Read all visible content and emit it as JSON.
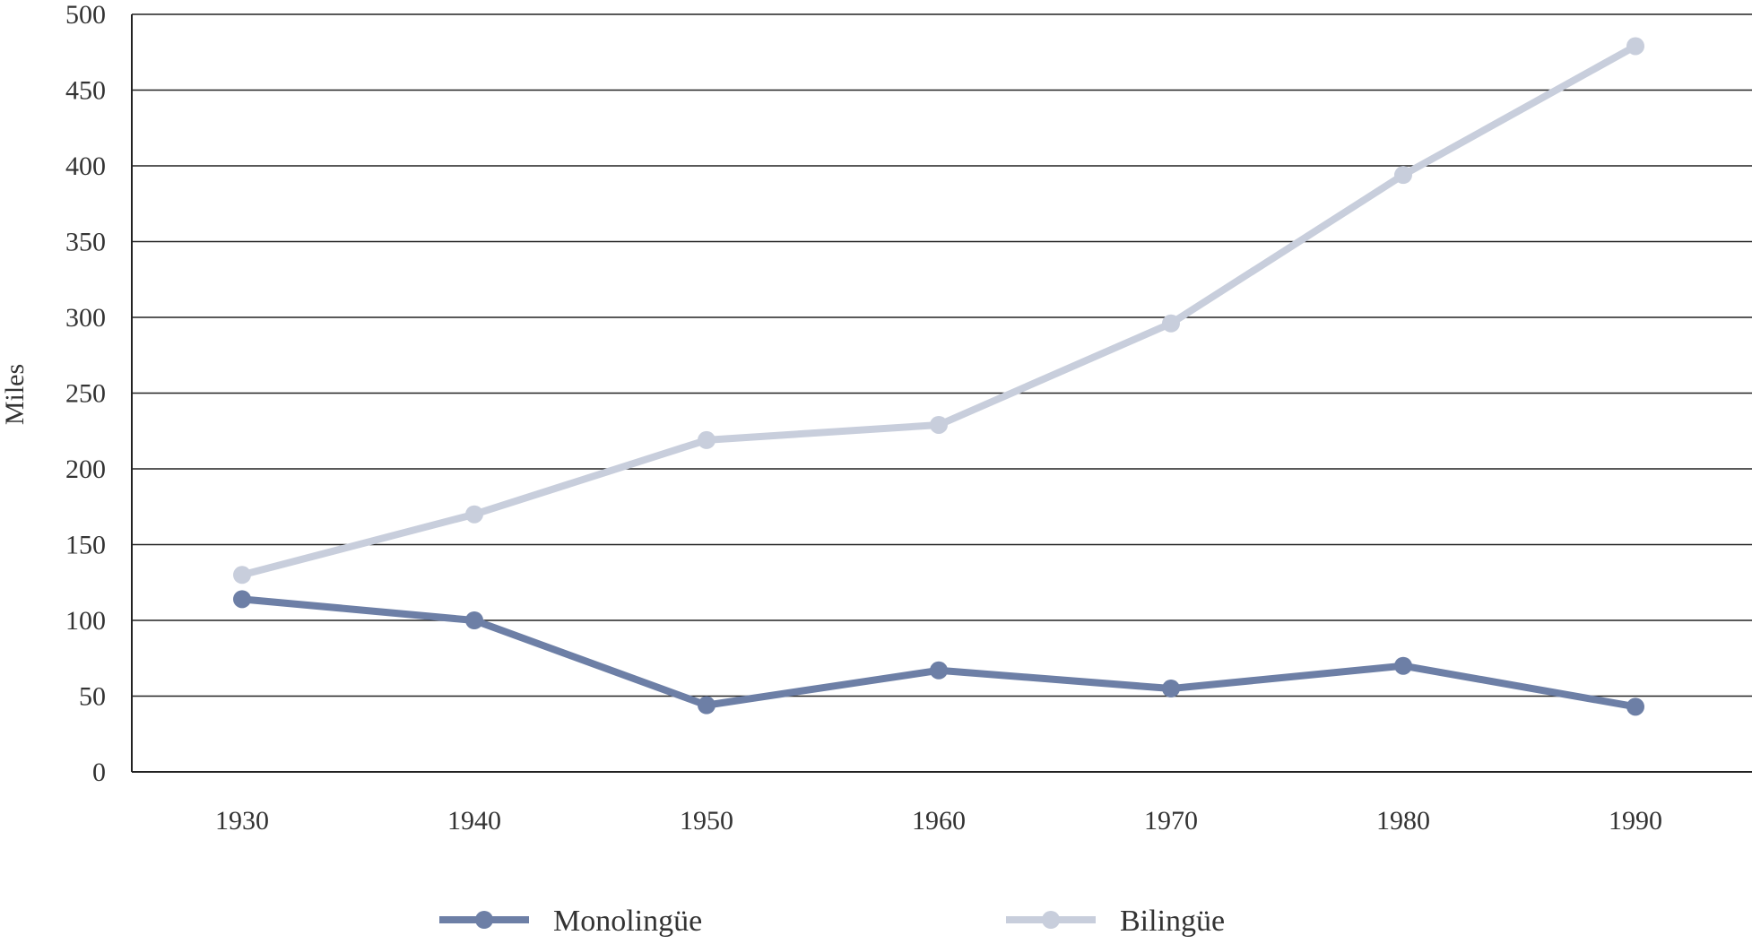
{
  "chart_data": {
    "type": "line",
    "title": "",
    "xlabel": "",
    "ylabel": "Miles",
    "ylim": [
      0,
      500
    ],
    "yticks": [
      0,
      50,
      100,
      150,
      200,
      250,
      300,
      350,
      400,
      450,
      500
    ],
    "categories": [
      "1930",
      "1940",
      "1950",
      "1960",
      "1970",
      "1980",
      "1990"
    ],
    "grid": true,
    "legend_position": "bottom",
    "series": [
      {
        "name": "Monolingüe",
        "color": "#6d7fa6",
        "values": [
          114,
          100,
          44,
          67,
          55,
          70,
          43
        ]
      },
      {
        "name": "Bilingüe",
        "color": "#c8cedc",
        "values": [
          130,
          170,
          219,
          229,
          296,
          394,
          479
        ]
      }
    ]
  }
}
